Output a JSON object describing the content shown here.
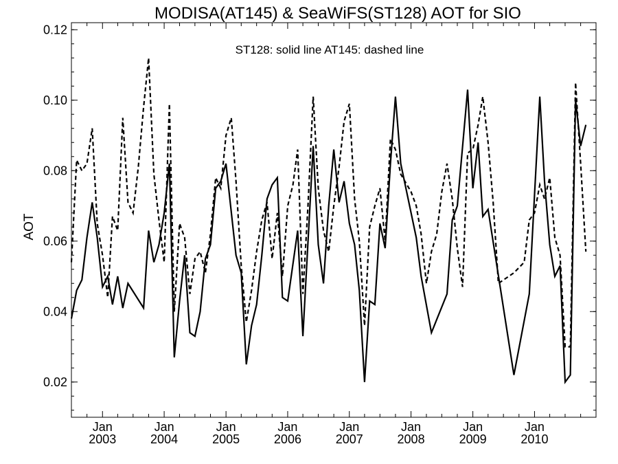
{
  "chart_data": {
    "type": "line",
    "title": "MODISA(AT145) & SeaWiFS(ST128)  AOT for SIO",
    "annotation": "ST128: solid line   AT145: dashed line",
    "ylabel": "AOT",
    "xlabel": "",
    "ylim": [
      0.01,
      0.122
    ],
    "xlim": [
      "2002-07-01",
      "2010-12-31"
    ],
    "yticks": [
      "0.02",
      "0.04",
      "0.06",
      "0.08",
      "0.10",
      "0.12"
    ],
    "xticks": [
      {
        "date": "2003-01-01",
        "month": "Jan",
        "year": "2003"
      },
      {
        "date": "2004-01-01",
        "month": "Jan",
        "year": "2004"
      },
      {
        "date": "2005-01-01",
        "month": "Jan",
        "year": "2005"
      },
      {
        "date": "2006-01-01",
        "month": "Jan",
        "year": "2006"
      },
      {
        "date": "2007-01-01",
        "month": "Jan",
        "year": "2007"
      },
      {
        "date": "2008-01-01",
        "month": "Jan",
        "year": "2008"
      },
      {
        "date": "2009-01-01",
        "month": "Jan",
        "year": "2009"
      },
      {
        "date": "2010-01-01",
        "month": "Jan",
        "year": "2010"
      }
    ],
    "grid": false,
    "series": [
      {
        "name": "ST128",
        "style": "solid",
        "color": "#000000",
        "points": [
          [
            "2002-07-01",
            0.038
          ],
          [
            "2002-08-01",
            0.046
          ],
          [
            "2002-09-01",
            0.049
          ],
          [
            "2002-10-01",
            0.061
          ],
          [
            "2002-11-01",
            0.071
          ],
          [
            "2002-12-01",
            0.061
          ],
          [
            "2003-01-01",
            0.047
          ],
          [
            "2003-02-01",
            0.05
          ],
          [
            "2003-03-01",
            0.042
          ],
          [
            "2003-04-01",
            0.05
          ],
          [
            "2003-05-01",
            0.041
          ],
          [
            "2003-06-01",
            0.048
          ],
          [
            "2003-09-01",
            0.041
          ],
          [
            "2003-10-01",
            0.063
          ],
          [
            "2003-11-01",
            0.054
          ],
          [
            "2003-12-01",
            0.059
          ],
          [
            "2004-01-01",
            0.068
          ],
          [
            "2004-02-01",
            0.082
          ],
          [
            "2004-03-01",
            0.027
          ],
          [
            "2004-04-01",
            0.043
          ],
          [
            "2004-05-01",
            0.056
          ],
          [
            "2004-06-01",
            0.034
          ],
          [
            "2004-07-01",
            0.033
          ],
          [
            "2004-08-01",
            0.04
          ],
          [
            "2004-09-01",
            0.055
          ],
          [
            "2004-10-01",
            0.059
          ],
          [
            "2004-11-01",
            0.075
          ],
          [
            "2004-12-01",
            0.077
          ],
          [
            "2005-01-01",
            0.082
          ],
          [
            "2005-03-01",
            0.056
          ],
          [
            "2005-04-01",
            0.051
          ],
          [
            "2005-05-01",
            0.025
          ],
          [
            "2005-06-01",
            0.036
          ],
          [
            "2005-07-01",
            0.042
          ],
          [
            "2005-08-01",
            0.056
          ],
          [
            "2005-09-01",
            0.072
          ],
          [
            "2005-10-01",
            0.076
          ],
          [
            "2005-11-01",
            0.078
          ],
          [
            "2005-12-01",
            0.044
          ],
          [
            "2006-01-01",
            0.043
          ],
          [
            "2006-03-01",
            0.063
          ],
          [
            "2006-04-01",
            0.033
          ],
          [
            "2006-06-01",
            0.087
          ],
          [
            "2006-07-01",
            0.059
          ],
          [
            "2006-08-01",
            0.048
          ],
          [
            "2006-09-01",
            0.07
          ],
          [
            "2006-10-01",
            0.086
          ],
          [
            "2006-11-01",
            0.071
          ],
          [
            "2006-12-01",
            0.077
          ],
          [
            "2007-01-01",
            0.065
          ],
          [
            "2007-02-01",
            0.059
          ],
          [
            "2007-03-01",
            0.046
          ],
          [
            "2007-04-01",
            0.02
          ],
          [
            "2007-05-01",
            0.043
          ],
          [
            "2007-06-01",
            0.042
          ],
          [
            "2007-07-01",
            0.065
          ],
          [
            "2007-08-01",
            0.058
          ],
          [
            "2007-09-01",
            0.082
          ],
          [
            "2007-10-01",
            0.101
          ],
          [
            "2007-11-01",
            0.082
          ],
          [
            "2008-02-01",
            0.061
          ],
          [
            "2008-03-01",
            0.05
          ],
          [
            "2008-05-01",
            0.034
          ],
          [
            "2008-08-01",
            0.045
          ],
          [
            "2008-09-01",
            0.066
          ],
          [
            "2008-10-01",
            0.07
          ],
          [
            "2008-12-01",
            0.103
          ],
          [
            "2009-01-01",
            0.075
          ],
          [
            "2009-02-01",
            0.088
          ],
          [
            "2009-03-01",
            0.067
          ],
          [
            "2009-04-01",
            0.069
          ],
          [
            "2009-09-01",
            0.022
          ],
          [
            "2009-12-01",
            0.045
          ],
          [
            "2010-01-01",
            0.073
          ],
          [
            "2010-02-01",
            0.101
          ],
          [
            "2010-03-01",
            0.077
          ],
          [
            "2010-04-01",
            0.059
          ],
          [
            "2010-05-01",
            0.05
          ],
          [
            "2010-06-01",
            0.053
          ],
          [
            "2010-07-01",
            0.02
          ],
          [
            "2010-08-01",
            0.022
          ],
          [
            "2010-09-01",
            0.1
          ],
          [
            "2010-10-01",
            0.087
          ],
          [
            "2010-11-01",
            0.093
          ]
        ]
      },
      {
        "name": "AT145",
        "style": "dashed",
        "color": "#000000",
        "points": [
          [
            "2002-07-01",
            0.054
          ],
          [
            "2002-08-01",
            0.083
          ],
          [
            "2002-09-01",
            0.08
          ],
          [
            "2002-10-01",
            0.082
          ],
          [
            "2002-11-01",
            0.092
          ],
          [
            "2002-12-01",
            0.065
          ],
          [
            "2003-01-01",
            0.056
          ],
          [
            "2003-02-01",
            0.044
          ],
          [
            "2003-03-01",
            0.067
          ],
          [
            "2003-04-01",
            0.063
          ],
          [
            "2003-05-01",
            0.095
          ],
          [
            "2003-06-01",
            0.071
          ],
          [
            "2003-07-01",
            0.068
          ],
          [
            "2003-08-01",
            0.081
          ],
          [
            "2003-09-01",
            0.098
          ],
          [
            "2003-10-01",
            0.112
          ],
          [
            "2003-11-01",
            0.079
          ],
          [
            "2003-12-01",
            0.066
          ],
          [
            "2004-01-01",
            0.054
          ],
          [
            "2004-02-01",
            0.099
          ],
          [
            "2004-03-01",
            0.04
          ],
          [
            "2004-04-01",
            0.065
          ],
          [
            "2004-05-01",
            0.061
          ],
          [
            "2004-06-01",
            0.045
          ],
          [
            "2004-07-01",
            0.055
          ],
          [
            "2004-08-01",
            0.057
          ],
          [
            "2004-09-01",
            0.051
          ],
          [
            "2004-10-01",
            0.062
          ],
          [
            "2004-11-01",
            0.078
          ],
          [
            "2004-12-01",
            0.075
          ],
          [
            "2005-01-01",
            0.09
          ],
          [
            "2005-02-01",
            0.095
          ],
          [
            "2005-03-01",
            0.077
          ],
          [
            "2005-04-01",
            0.053
          ],
          [
            "2005-05-01",
            0.037
          ],
          [
            "2005-06-01",
            0.046
          ],
          [
            "2005-07-01",
            0.057
          ],
          [
            "2005-08-01",
            0.066
          ],
          [
            "2005-09-01",
            0.071
          ],
          [
            "2005-10-01",
            0.055
          ],
          [
            "2005-11-01",
            0.068
          ],
          [
            "2005-12-01",
            0.05
          ],
          [
            "2006-01-01",
            0.07
          ],
          [
            "2006-02-01",
            0.076
          ],
          [
            "2006-03-01",
            0.086
          ],
          [
            "2006-04-01",
            0.045
          ],
          [
            "2006-05-01",
            0.07
          ],
          [
            "2006-06-01",
            0.101
          ],
          [
            "2006-07-01",
            0.075
          ],
          [
            "2006-08-01",
            0.063
          ],
          [
            "2006-09-01",
            0.057
          ],
          [
            "2006-10-01",
            0.07
          ],
          [
            "2006-11-01",
            0.081
          ],
          [
            "2006-12-01",
            0.094
          ],
          [
            "2007-01-01",
            0.099
          ],
          [
            "2007-02-01",
            0.072
          ],
          [
            "2007-03-01",
            0.06
          ],
          [
            "2007-04-01",
            0.036
          ],
          [
            "2007-05-01",
            0.064
          ],
          [
            "2007-06-01",
            0.07
          ],
          [
            "2007-07-01",
            0.075
          ],
          [
            "2007-08-01",
            0.06
          ],
          [
            "2007-09-01",
            0.089
          ],
          [
            "2007-10-01",
            0.086
          ],
          [
            "2007-11-01",
            0.079
          ],
          [
            "2008-01-01",
            0.074
          ],
          [
            "2008-02-01",
            0.07
          ],
          [
            "2008-03-01",
            0.062
          ],
          [
            "2008-04-01",
            0.048
          ],
          [
            "2008-05-01",
            0.057
          ],
          [
            "2008-06-01",
            0.062
          ],
          [
            "2008-07-01",
            0.074
          ],
          [
            "2008-08-01",
            0.082
          ],
          [
            "2008-09-01",
            0.072
          ],
          [
            "2008-10-01",
            0.058
          ],
          [
            "2008-11-01",
            0.047
          ],
          [
            "2008-12-01",
            0.085
          ],
          [
            "2009-01-01",
            0.086
          ],
          [
            "2009-02-01",
            0.093
          ],
          [
            "2009-03-01",
            0.101
          ],
          [
            "2009-04-01",
            0.088
          ],
          [
            "2009-05-01",
            0.071
          ],
          [
            "2009-06-01",
            0.048
          ],
          [
            "2009-09-01",
            0.051
          ],
          [
            "2009-11-01",
            0.054
          ],
          [
            "2009-12-01",
            0.066
          ],
          [
            "2010-01-01",
            0.068
          ],
          [
            "2010-02-01",
            0.076
          ],
          [
            "2010-03-01",
            0.072
          ],
          [
            "2010-04-01",
            0.078
          ],
          [
            "2010-05-01",
            0.061
          ],
          [
            "2010-06-01",
            0.056
          ],
          [
            "2010-07-01",
            0.03
          ],
          [
            "2010-08-01",
            0.03
          ],
          [
            "2010-09-01",
            0.105
          ],
          [
            "2010-10-01",
            0.082
          ],
          [
            "2010-11-01",
            0.057
          ]
        ]
      }
    ]
  }
}
